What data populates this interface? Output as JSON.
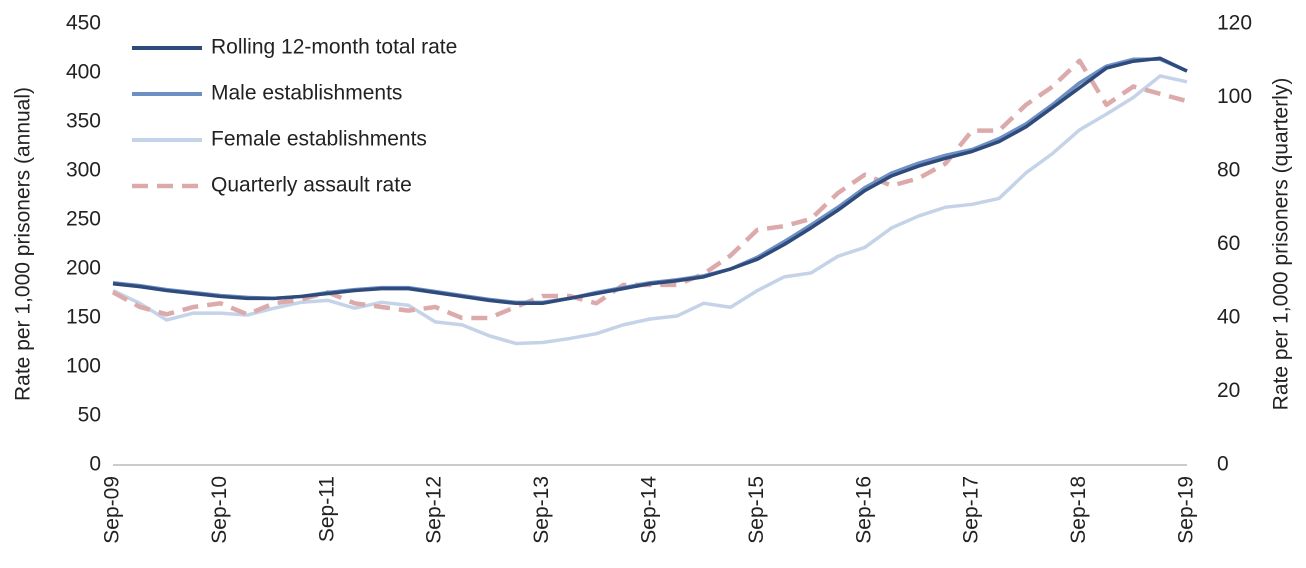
{
  "chart_data": {
    "type": "line",
    "y_label": "Rate per 1,000 prisoners (annual)",
    "y2_label": "Rate per 1,000 prisoners (quarterly)",
    "categories": [
      "Sep-09",
      null,
      null,
      null,
      "Sep-10",
      null,
      null,
      null,
      "Sep-11",
      null,
      null,
      null,
      "Sep-12",
      null,
      null,
      null,
      "Sep-13",
      null,
      null,
      null,
      "Sep-14",
      null,
      null,
      null,
      "Sep-15",
      null,
      null,
      null,
      "Sep-16",
      null,
      null,
      null,
      "Sep-17",
      null,
      null,
      null,
      "Sep-18",
      null,
      null,
      null,
      "Sep-19"
    ],
    "ylim": [
      0,
      450
    ],
    "yticks": [
      0,
      50,
      100,
      150,
      200,
      250,
      300,
      350,
      400,
      450
    ],
    "y2lim": [
      0,
      120
    ],
    "y2ticks": [
      0,
      20,
      40,
      60,
      80,
      100,
      120
    ],
    "legend": "upper left",
    "series": [
      {
        "name": "Rolling 12-month total rate",
        "color": "#2f4b7c",
        "dashed": false,
        "values": [
          185,
          182,
          178,
          175,
          172,
          170,
          170,
          172,
          175,
          178,
          180,
          180,
          176,
          172,
          168,
          165,
          165,
          170,
          175,
          180,
          185,
          188,
          192,
          200,
          210,
          225,
          242,
          260,
          280,
          295,
          305,
          313,
          320,
          330,
          345,
          365,
          385,
          405,
          412,
          415,
          402
        ]
      },
      {
        "name": "Male establishments",
        "color": "#6d8fc4",
        "dashed": false,
        "values": [
          186,
          183,
          179,
          176,
          173,
          171,
          170,
          172,
          176,
          179,
          181,
          181,
          177,
          173,
          169,
          166,
          166,
          170,
          176,
          181,
          186,
          189,
          193,
          200,
          212,
          228,
          245,
          263,
          283,
          298,
          308,
          316,
          322,
          333,
          348,
          368,
          390,
          407,
          414,
          414,
          402
        ]
      },
      {
        "name": "Female establishments",
        "color": "#c5d3e8",
        "dashed": false,
        "values": [
          178,
          165,
          148,
          155,
          155,
          153,
          160,
          166,
          168,
          160,
          166,
          163,
          146,
          143,
          132,
          124,
          125,
          129,
          134,
          143,
          149,
          152,
          165,
          161,
          178,
          192,
          196,
          213,
          222,
          242,
          254,
          263,
          266,
          272,
          298,
          318,
          342,
          358,
          375,
          397,
          391
        ]
      },
      {
        "name": "Quarterly assault rate",
        "color": "#dcaaaa",
        "dashed": true,
        "axis": "y2",
        "values": [
          47,
          43,
          41,
          43,
          44,
          41,
          44,
          45,
          47,
          44,
          43,
          42,
          43,
          40,
          40,
          43,
          46,
          46,
          44,
          49,
          49,
          49,
          52,
          57,
          64,
          65,
          67,
          74,
          79,
          76,
          78,
          82,
          91,
          91,
          98,
          103,
          110,
          98,
          103,
          101,
          99
        ]
      }
    ]
  }
}
